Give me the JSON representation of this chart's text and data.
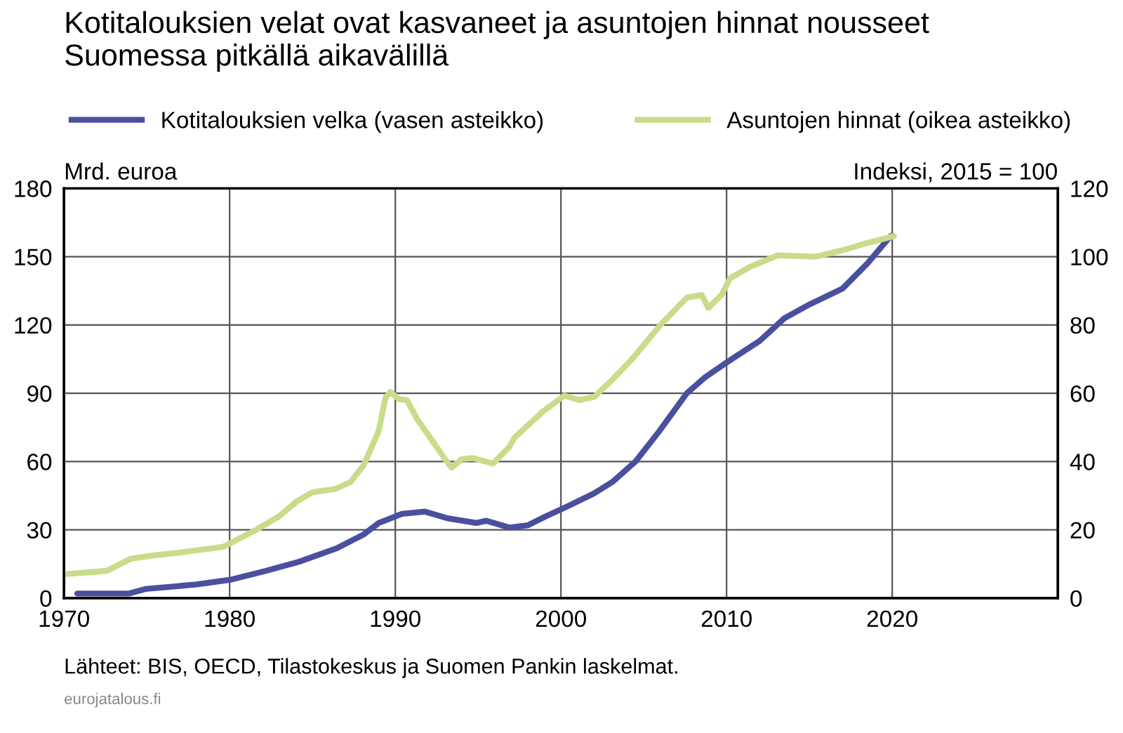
{
  "chart_data": {
    "type": "line",
    "title": "Kotitalouksien velat ovat kasvaneet ja asuntojen hinnat nousseet\nSuomessa pitkällä aikavälillä",
    "ylabel": "Mrd. euroa",
    "y2label": "Indeksi, 2015 = 100",
    "xlim": [
      1970,
      2030
    ],
    "xticks": [
      1970,
      1980,
      1990,
      2000,
      2010,
      2020,
      {
        "value": 2030,
        "label": null
      }
    ],
    "ylim": [
      0,
      180
    ],
    "yticks": [
      0,
      30,
      60,
      90,
      120,
      150,
      180
    ],
    "y2lim": [
      0,
      120
    ],
    "y2ticks": [
      0,
      20,
      40,
      60,
      80,
      100,
      120
    ],
    "grid": true,
    "legend": "top",
    "marker": "none",
    "line_style": "solid",
    "series": [
      {
        "name": "Kotitalouksien velka (vasen asteikko)",
        "color": "#4a4f9e",
        "axis": "y",
        "x": [
          1970.8,
          1973.9,
          1974.9,
          1978,
          1980,
          1982.2,
          1984.2,
          1986.5,
          1988.1,
          1989,
          1990.4,
          1991.8,
          1993.2,
          1994.9,
          1995.5,
          1996.9,
          1998,
          1999.1,
          2000.3,
          2002,
          2003.1,
          2004.5,
          2005.9,
          2007.6,
          2008.7,
          2010.1,
          2012,
          2013.5,
          2015,
          2017,
          2018.5,
          2019.9
        ],
        "values": [
          2,
          2,
          4,
          6,
          8,
          12,
          16,
          22,
          28,
          33,
          37,
          38,
          35,
          33,
          34,
          31,
          32,
          36,
          40,
          46,
          51,
          60,
          73,
          90,
          97,
          104,
          113,
          123,
          129,
          136,
          147,
          159
        ]
      },
      {
        "name": "Asuntojen hinnat (oikea asteikko)",
        "color": "#c8dc8a",
        "axis": "y2",
        "x": [
          1970,
          1972.6,
          1974,
          1975.4,
          1977.1,
          1979.6,
          1981.6,
          1983,
          1984.1,
          1985,
          1986.4,
          1987.3,
          1988.1,
          1989,
          1989.4,
          1989.7,
          1990.2,
          1990.7,
          1991.3,
          1992.1,
          1993.2,
          1993.4,
          1994,
          1994.7,
          1995.9,
          1996.9,
          1997.2,
          1998.9,
          2000.2,
          2001.1,
          2002,
          2003.1,
          2004.3,
          2006,
          2007.6,
          2008.5,
          2008.9,
          2009.7,
          2010.2,
          2011.4,
          2013.1,
          2015.4,
          2017.1,
          2018.5,
          2020.1
        ],
        "values": [
          7,
          8,
          11.5,
          12.5,
          13.4,
          15,
          20,
          24,
          28.5,
          31,
          32,
          34,
          39,
          49,
          58.6,
          60.4,
          58.3,
          58,
          52.6,
          47,
          39.4,
          38.2,
          40.7,
          41,
          39.4,
          44.4,
          47,
          54.6,
          59.3,
          58,
          58.9,
          64,
          70,
          80,
          88,
          88.8,
          85,
          88.8,
          93.6,
          97,
          100.4,
          100,
          102,
          104,
          106
        ]
      }
    ],
    "annotations": [
      "Lähteet: BIS, OECD, Tilastokeskus ja Suomen Pankin laskelmat.",
      "eurojatalous.fi"
    ]
  }
}
